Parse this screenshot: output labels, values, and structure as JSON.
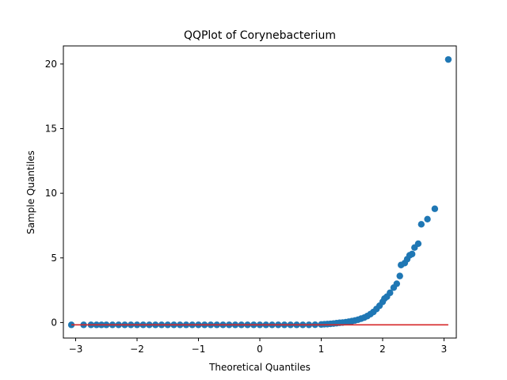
{
  "chart_data": {
    "type": "scatter",
    "title": "QQPlot of Corynebacterium",
    "xlabel": "Theoretical Quantiles",
    "ylabel": "Sample Quantiles",
    "xlim": [
      -3.2,
      3.2
    ],
    "ylim": [
      -1.2,
      21.4
    ],
    "xticks": [
      -3,
      -2,
      -1,
      0,
      1,
      2,
      3
    ],
    "yticks": [
      0,
      5,
      10,
      15,
      20
    ],
    "grid": false,
    "marker_color": "#1f77b4",
    "line_color": "#d62728",
    "reference_line": {
      "x": [
        -3.07,
        3.07
      ],
      "y": [
        -0.18,
        -0.18
      ]
    },
    "series": [
      {
        "values_xy": [
          [
            -3.07,
            -0.18
          ],
          [
            -2.87,
            -0.18
          ],
          [
            -2.75,
            -0.18
          ],
          [
            -2.66,
            -0.18
          ],
          [
            -2.58,
            -0.18
          ],
          [
            -2.5,
            -0.18
          ],
          [
            -2.4,
            -0.18
          ],
          [
            -2.3,
            -0.18
          ],
          [
            -2.2,
            -0.18
          ],
          [
            -2.1,
            -0.18
          ],
          [
            -2.0,
            -0.18
          ],
          [
            -1.9,
            -0.18
          ],
          [
            -1.8,
            -0.18
          ],
          [
            -1.7,
            -0.18
          ],
          [
            -1.6,
            -0.18
          ],
          [
            -1.5,
            -0.18
          ],
          [
            -1.4,
            -0.18
          ],
          [
            -1.3,
            -0.18
          ],
          [
            -1.2,
            -0.18
          ],
          [
            -1.1,
            -0.18
          ],
          [
            -1.0,
            -0.18
          ],
          [
            -0.9,
            -0.18
          ],
          [
            -0.8,
            -0.18
          ],
          [
            -0.7,
            -0.18
          ],
          [
            -0.6,
            -0.18
          ],
          [
            -0.5,
            -0.18
          ],
          [
            -0.4,
            -0.18
          ],
          [
            -0.3,
            -0.18
          ],
          [
            -0.2,
            -0.18
          ],
          [
            -0.1,
            -0.18
          ],
          [
            0.0,
            -0.18
          ],
          [
            0.1,
            -0.18
          ],
          [
            0.2,
            -0.18
          ],
          [
            0.3,
            -0.18
          ],
          [
            0.4,
            -0.18
          ],
          [
            0.5,
            -0.18
          ],
          [
            0.6,
            -0.18
          ],
          [
            0.7,
            -0.18
          ],
          [
            0.8,
            -0.18
          ],
          [
            0.9,
            -0.17
          ],
          [
            1.0,
            -0.15
          ],
          [
            1.05,
            -0.13
          ],
          [
            1.1,
            -0.12
          ],
          [
            1.15,
            -0.1
          ],
          [
            1.2,
            -0.08
          ],
          [
            1.25,
            -0.05
          ],
          [
            1.3,
            -0.02
          ],
          [
            1.35,
            0.0
          ],
          [
            1.4,
            0.03
          ],
          [
            1.45,
            0.07
          ],
          [
            1.5,
            0.11
          ],
          [
            1.55,
            0.16
          ],
          [
            1.6,
            0.22
          ],
          [
            1.65,
            0.3
          ],
          [
            1.7,
            0.38
          ],
          [
            1.75,
            0.5
          ],
          [
            1.8,
            0.65
          ],
          [
            1.85,
            0.82
          ],
          [
            1.9,
            1.05
          ],
          [
            1.95,
            1.3
          ],
          [
            2.0,
            1.6
          ],
          [
            2.03,
            1.85
          ],
          [
            2.07,
            2.0
          ],
          [
            2.12,
            2.3
          ],
          [
            2.18,
            2.7
          ],
          [
            2.23,
            3.0
          ],
          [
            2.28,
            3.6
          ],
          [
            2.3,
            4.45
          ],
          [
            2.36,
            4.6
          ],
          [
            2.4,
            4.9
          ],
          [
            2.44,
            5.2
          ],
          [
            2.48,
            5.3
          ],
          [
            2.52,
            5.8
          ],
          [
            2.58,
            6.1
          ],
          [
            2.63,
            7.6
          ],
          [
            2.73,
            8.0
          ],
          [
            2.85,
            8.8
          ],
          [
            3.07,
            20.35
          ]
        ]
      }
    ]
  }
}
